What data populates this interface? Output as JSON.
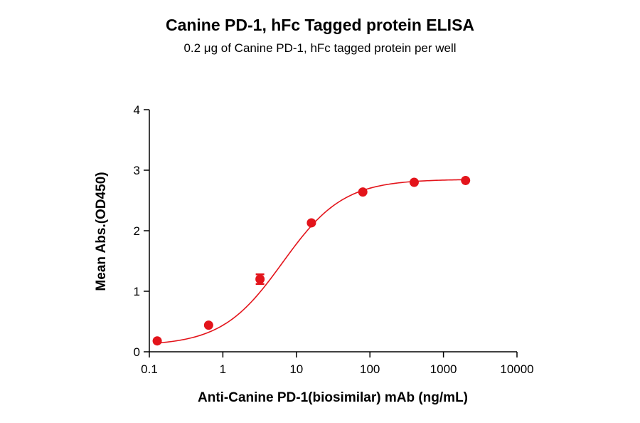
{
  "chart_data": {
    "type": "scatter",
    "title": "Canine PD-1, hFc Tagged protein ELISA",
    "subtitle": "0.2 μg of Canine PD-1, hFc tagged protein per well",
    "xlabel": "Anti-Canine PD-1(biosimilar) mAb (ng/mL)",
    "ylabel": "Mean Abs.(OD450)",
    "xscale": "log",
    "xlim": [
      0.1,
      10000
    ],
    "ylim": [
      0,
      4
    ],
    "xticks": [
      "0.1",
      "1",
      "10",
      "100",
      "1000",
      "10000"
    ],
    "yticks": [
      "0",
      "1",
      "2",
      "3",
      "4"
    ],
    "grid": false,
    "legend": "none",
    "color": "#e3141b",
    "series": [
      {
        "x": [
          0.128,
          0.64,
          3.2,
          16,
          80,
          400,
          2000
        ],
        "y": [
          0.18,
          0.44,
          1.2,
          2.13,
          2.64,
          2.8,
          2.83
        ],
        "error": [
          0.0,
          0.0,
          0.08,
          0.0,
          0.0,
          0.0,
          0.0
        ]
      }
    ],
    "fit": {
      "type": "4PL",
      "bottom": 0.1,
      "top": 2.85,
      "ec50": 6.5,
      "hill": 1.05
    }
  }
}
